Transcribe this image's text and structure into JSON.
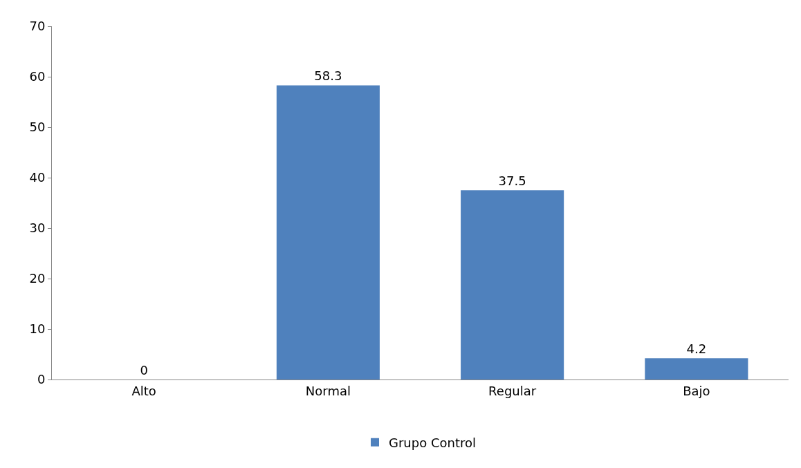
{
  "chart_data": {
    "type": "bar",
    "categories": [
      "Alto",
      "Normal",
      "Regular",
      "Bajo"
    ],
    "series": [
      {
        "name": "Grupo Control",
        "color": "#4f81bd",
        "values": [
          0,
          58.3,
          37.5,
          4.2
        ]
      }
    ],
    "ylim": [
      0,
      70
    ],
    "yticks": [
      0,
      10,
      20,
      30,
      40,
      50,
      60,
      70
    ],
    "data_labels": true,
    "legend": "bottom"
  }
}
